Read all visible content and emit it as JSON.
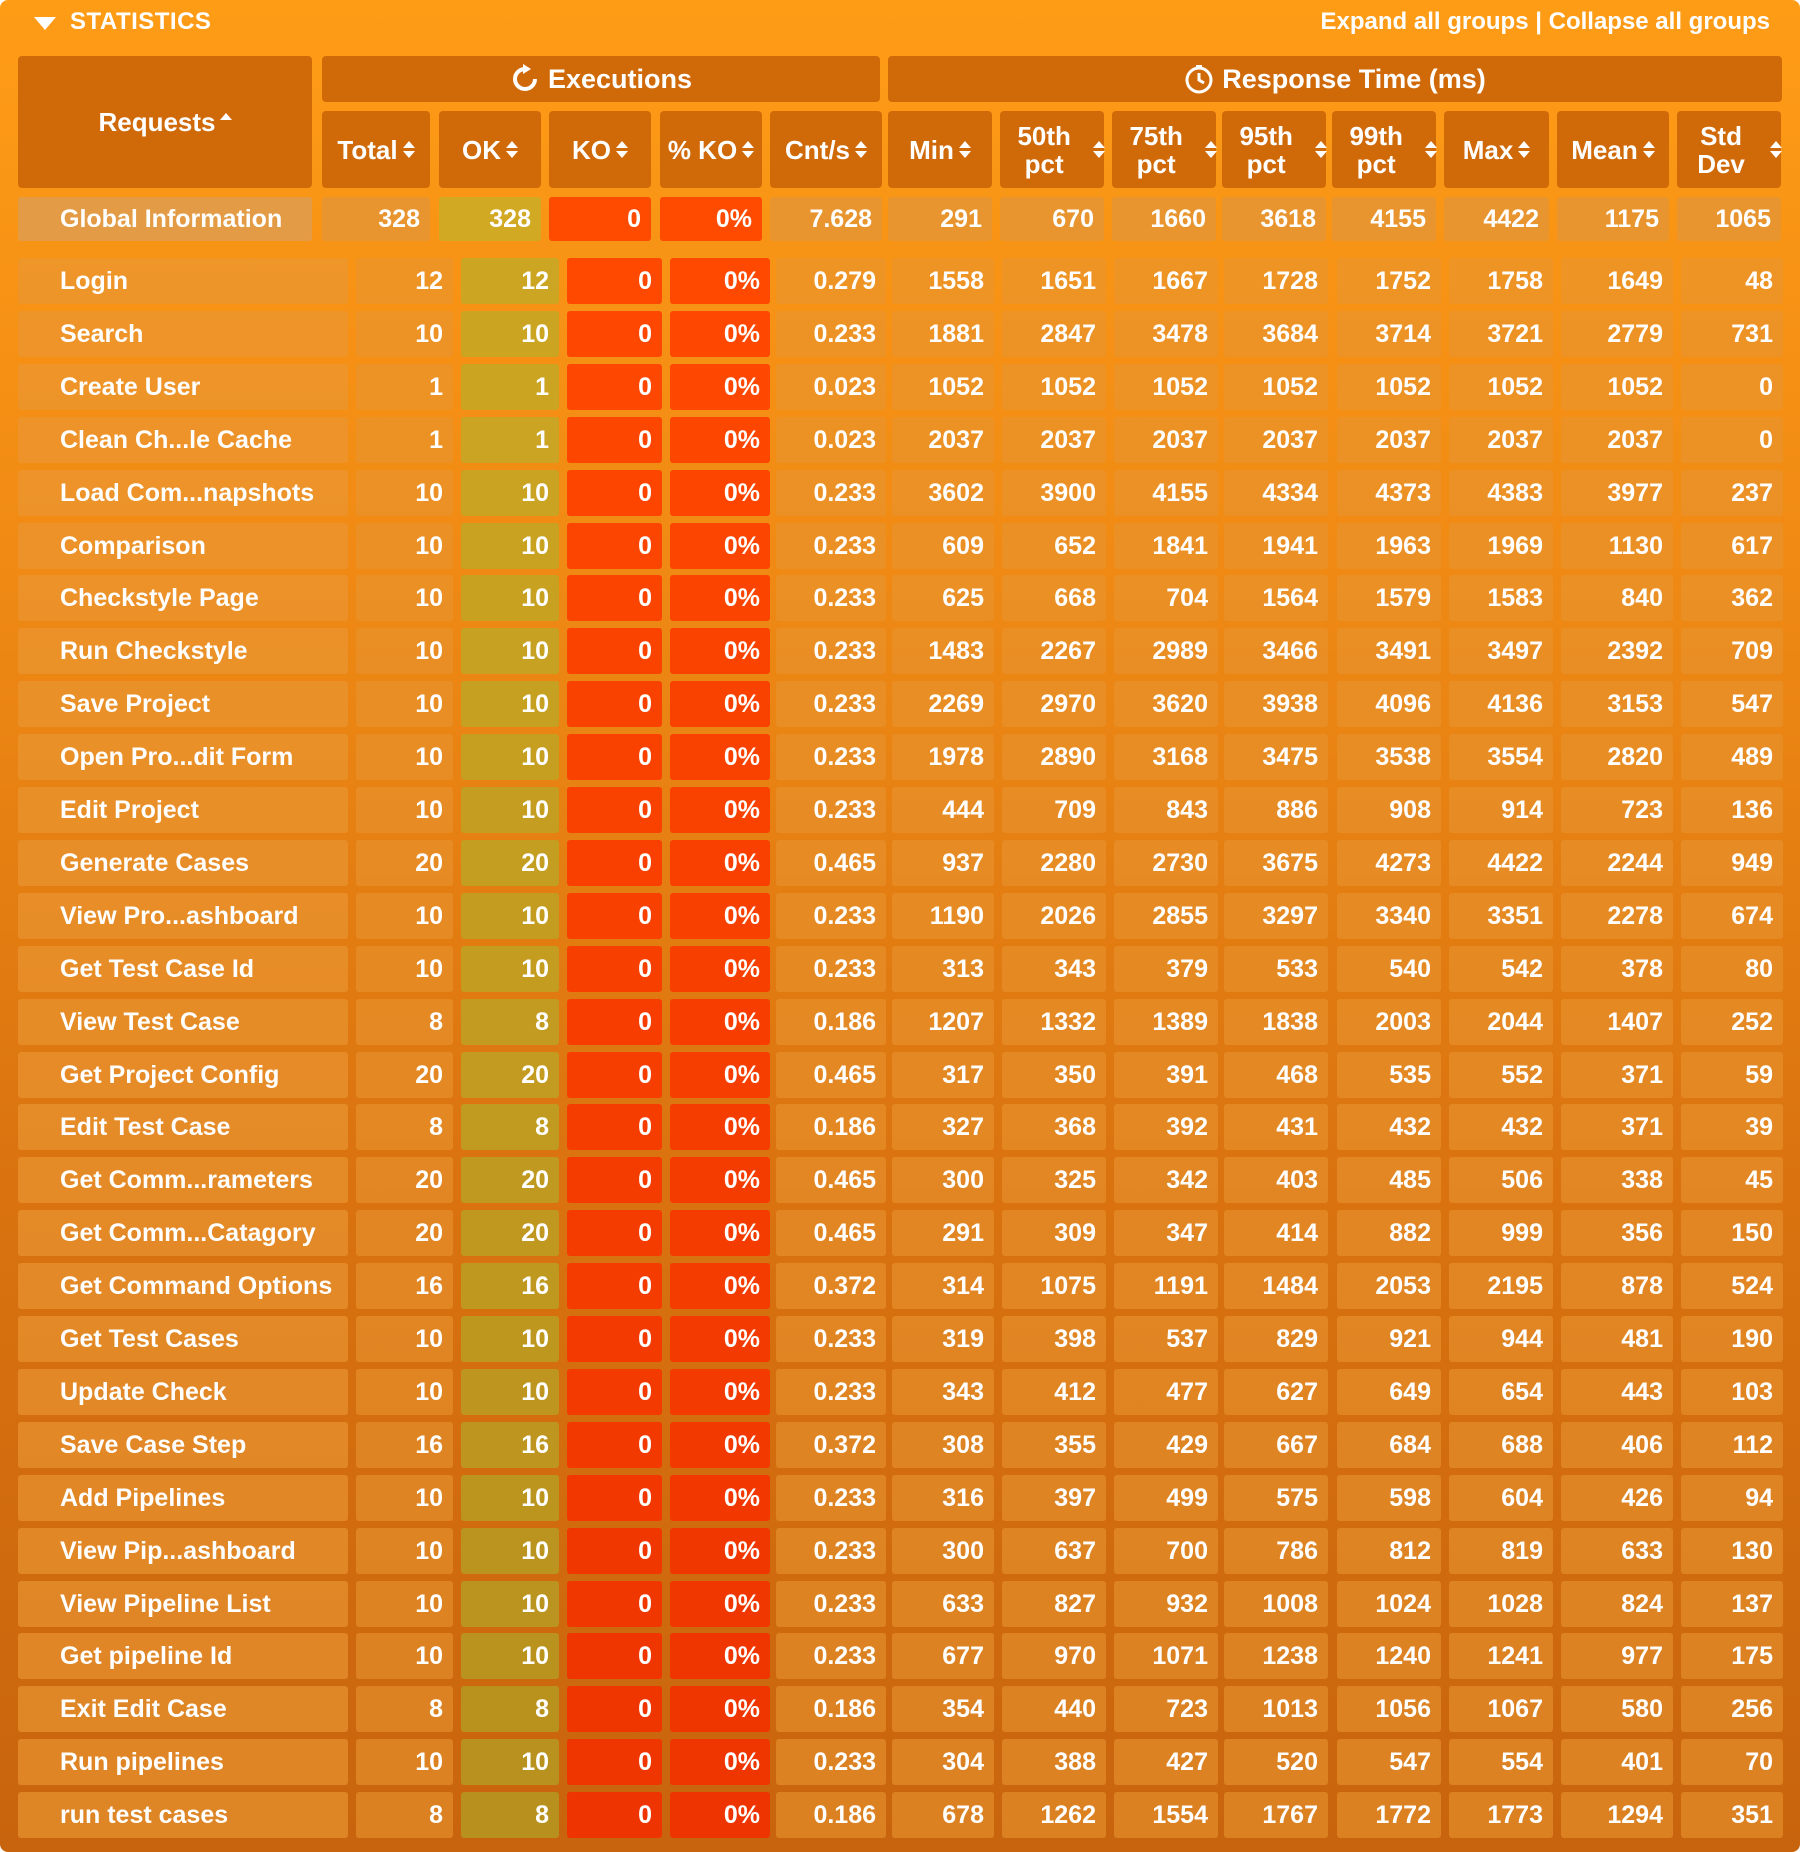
{
  "header": {
    "title": "STATISTICS",
    "expand_label": "Expand all groups",
    "separator": "|",
    "collapse_label": "Collapse all groups"
  },
  "groups": {
    "executions": "Executions",
    "response_time": "Response Time (ms)"
  },
  "columns": [
    "Requests",
    "Total",
    "OK",
    "KO",
    "% KO",
    "Cnt/s",
    "Min",
    "50th pct",
    "75th pct",
    "95th pct",
    "99th pct",
    "Max",
    "Mean",
    "Std Dev"
  ],
  "global": {
    "name": "Global Information",
    "values": [
      "328",
      "328",
      "0",
      "0%",
      "7.628",
      "291",
      "670",
      "1660",
      "3618",
      "4155",
      "4422",
      "1175",
      "1065"
    ]
  },
  "rows": [
    {
      "name": "Login",
      "values": [
        "12",
        "12",
        "0",
        "0%",
        "0.279",
        "1558",
        "1651",
        "1667",
        "1728",
        "1752",
        "1758",
        "1649",
        "48"
      ]
    },
    {
      "name": "Search",
      "values": [
        "10",
        "10",
        "0",
        "0%",
        "0.233",
        "1881",
        "2847",
        "3478",
        "3684",
        "3714",
        "3721",
        "2779",
        "731"
      ]
    },
    {
      "name": "Create User",
      "values": [
        "1",
        "1",
        "0",
        "0%",
        "0.023",
        "1052",
        "1052",
        "1052",
        "1052",
        "1052",
        "1052",
        "1052",
        "0"
      ]
    },
    {
      "name": "Clean Ch...le Cache",
      "values": [
        "1",
        "1",
        "0",
        "0%",
        "0.023",
        "2037",
        "2037",
        "2037",
        "2037",
        "2037",
        "2037",
        "2037",
        "0"
      ]
    },
    {
      "name": "Load Com...napshots",
      "values": [
        "10",
        "10",
        "0",
        "0%",
        "0.233",
        "3602",
        "3900",
        "4155",
        "4334",
        "4373",
        "4383",
        "3977",
        "237"
      ]
    },
    {
      "name": "Comparison",
      "values": [
        "10",
        "10",
        "0",
        "0%",
        "0.233",
        "609",
        "652",
        "1841",
        "1941",
        "1963",
        "1969",
        "1130",
        "617"
      ]
    },
    {
      "name": "Checkstyle Page",
      "values": [
        "10",
        "10",
        "0",
        "0%",
        "0.233",
        "625",
        "668",
        "704",
        "1564",
        "1579",
        "1583",
        "840",
        "362"
      ]
    },
    {
      "name": "Run Checkstyle",
      "values": [
        "10",
        "10",
        "0",
        "0%",
        "0.233",
        "1483",
        "2267",
        "2989",
        "3466",
        "3491",
        "3497",
        "2392",
        "709"
      ]
    },
    {
      "name": "Save Project",
      "values": [
        "10",
        "10",
        "0",
        "0%",
        "0.233",
        "2269",
        "2970",
        "3620",
        "3938",
        "4096",
        "4136",
        "3153",
        "547"
      ]
    },
    {
      "name": "Open Pro...dit Form",
      "values": [
        "10",
        "10",
        "0",
        "0%",
        "0.233",
        "1978",
        "2890",
        "3168",
        "3475",
        "3538",
        "3554",
        "2820",
        "489"
      ]
    },
    {
      "name": "Edit Project",
      "values": [
        "10",
        "10",
        "0",
        "0%",
        "0.233",
        "444",
        "709",
        "843",
        "886",
        "908",
        "914",
        "723",
        "136"
      ]
    },
    {
      "name": "Generate Cases",
      "values": [
        "20",
        "20",
        "0",
        "0%",
        "0.465",
        "937",
        "2280",
        "2730",
        "3675",
        "4273",
        "4422",
        "2244",
        "949"
      ]
    },
    {
      "name": "View Pro...ashboard",
      "values": [
        "10",
        "10",
        "0",
        "0%",
        "0.233",
        "1190",
        "2026",
        "2855",
        "3297",
        "3340",
        "3351",
        "2278",
        "674"
      ]
    },
    {
      "name": "Get Test Case Id",
      "values": [
        "10",
        "10",
        "0",
        "0%",
        "0.233",
        "313",
        "343",
        "379",
        "533",
        "540",
        "542",
        "378",
        "80"
      ]
    },
    {
      "name": "View Test Case",
      "values": [
        "8",
        "8",
        "0",
        "0%",
        "0.186",
        "1207",
        "1332",
        "1389",
        "1838",
        "2003",
        "2044",
        "1407",
        "252"
      ]
    },
    {
      "name": "Get Project Config",
      "values": [
        "20",
        "20",
        "0",
        "0%",
        "0.465",
        "317",
        "350",
        "391",
        "468",
        "535",
        "552",
        "371",
        "59"
      ]
    },
    {
      "name": "Edit Test Case",
      "values": [
        "8",
        "8",
        "0",
        "0%",
        "0.186",
        "327",
        "368",
        "392",
        "431",
        "432",
        "432",
        "371",
        "39"
      ]
    },
    {
      "name": "Get Comm...rameters",
      "values": [
        "20",
        "20",
        "0",
        "0%",
        "0.465",
        "300",
        "325",
        "342",
        "403",
        "485",
        "506",
        "338",
        "45"
      ]
    },
    {
      "name": "Get Comm...Catagory",
      "values": [
        "20",
        "20",
        "0",
        "0%",
        "0.465",
        "291",
        "309",
        "347",
        "414",
        "882",
        "999",
        "356",
        "150"
      ]
    },
    {
      "name": "Get Command Options",
      "values": [
        "16",
        "16",
        "0",
        "0%",
        "0.372",
        "314",
        "1075",
        "1191",
        "1484",
        "2053",
        "2195",
        "878",
        "524"
      ]
    },
    {
      "name": "Get Test Cases",
      "values": [
        "10",
        "10",
        "0",
        "0%",
        "0.233",
        "319",
        "398",
        "537",
        "829",
        "921",
        "944",
        "481",
        "190"
      ]
    },
    {
      "name": "Update Check",
      "values": [
        "10",
        "10",
        "0",
        "0%",
        "0.233",
        "343",
        "412",
        "477",
        "627",
        "649",
        "654",
        "443",
        "103"
      ]
    },
    {
      "name": "Save Case Step",
      "values": [
        "16",
        "16",
        "0",
        "0%",
        "0.372",
        "308",
        "355",
        "429",
        "667",
        "684",
        "688",
        "406",
        "112"
      ]
    },
    {
      "name": "Add Pipelines",
      "values": [
        "10",
        "10",
        "0",
        "0%",
        "0.233",
        "316",
        "397",
        "499",
        "575",
        "598",
        "604",
        "426",
        "94"
      ]
    },
    {
      "name": "View Pip...ashboard",
      "values": [
        "10",
        "10",
        "0",
        "0%",
        "0.233",
        "300",
        "637",
        "700",
        "786",
        "812",
        "819",
        "633",
        "130"
      ]
    },
    {
      "name": "View Pipeline List",
      "values": [
        "10",
        "10",
        "0",
        "0%",
        "0.233",
        "633",
        "827",
        "932",
        "1008",
        "1024",
        "1028",
        "824",
        "137"
      ]
    },
    {
      "name": "Get pipeline Id",
      "values": [
        "10",
        "10",
        "0",
        "0%",
        "0.233",
        "677",
        "970",
        "1071",
        "1238",
        "1240",
        "1241",
        "977",
        "175"
      ]
    },
    {
      "name": "Exit Edit Case",
      "values": [
        "8",
        "8",
        "0",
        "0%",
        "0.186",
        "354",
        "440",
        "723",
        "1013",
        "1056",
        "1067",
        "580",
        "256"
      ]
    },
    {
      "name": "Run pipelines",
      "values": [
        "10",
        "10",
        "0",
        "0%",
        "0.233",
        "304",
        "388",
        "427",
        "520",
        "547",
        "554",
        "401",
        "70"
      ]
    },
    {
      "name": "run test cases",
      "values": [
        "8",
        "8",
        "0",
        "0%",
        "0.186",
        "678",
        "1262",
        "1554",
        "1767",
        "1772",
        "1773",
        "1294",
        "351"
      ]
    }
  ]
}
